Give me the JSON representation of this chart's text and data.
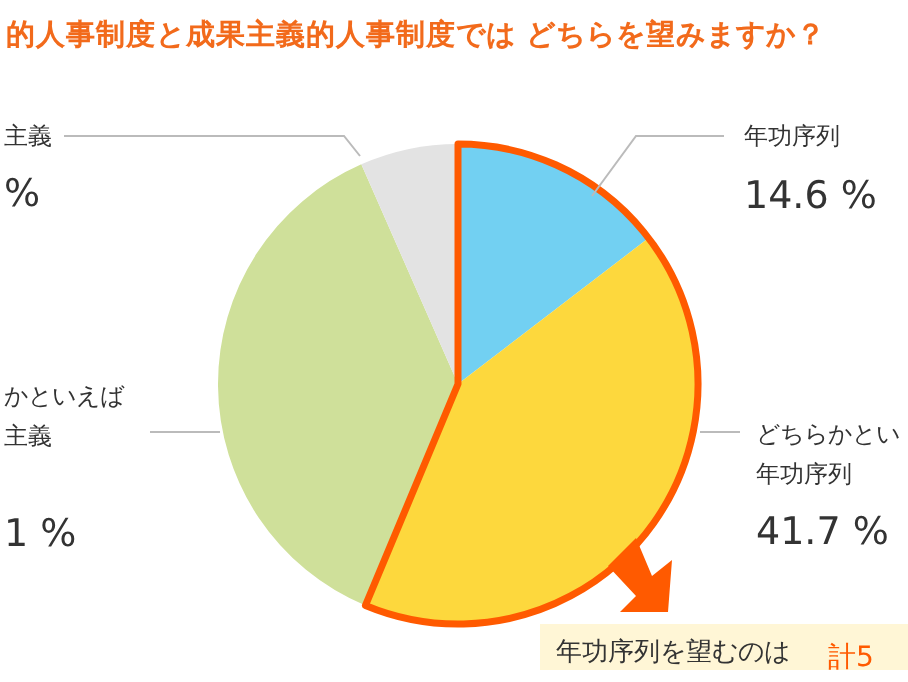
{
  "chart_data": {
    "type": "pie",
    "title": "的人事制度と成果主義的人事制度では どちらを望みますか？",
    "categories": [
      "年功序列",
      "どちらかとい年功序列",
      "かといえば主義",
      "主義"
    ],
    "values": [
      14.6,
      41.7,
      37.1,
      6.6
    ],
    "colors": [
      "#72d0f2",
      "#fdd83d",
      "#cfe09a",
      "#e3e3e3"
    ],
    "value_labels": [
      "14.6 %",
      "41.7 %",
      null,
      null
    ],
    "annotations": [
      "年功序列を望むのは",
      "計5",
      "1 %",
      "%"
    ]
  }
}
